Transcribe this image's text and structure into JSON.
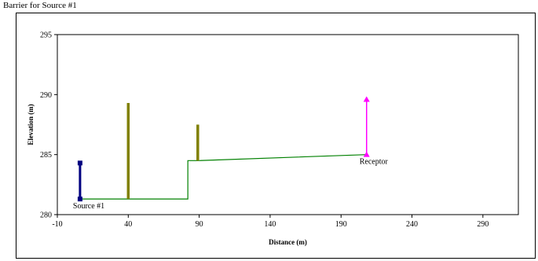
{
  "window": {
    "title": "Barrier for Source #1"
  },
  "chart_data": {
    "type": "line",
    "title": "",
    "xlabel": "Distance (m)",
    "ylabel": "Elevation (m)",
    "xlim": [
      -10,
      315
    ],
    "ylim": [
      280,
      295
    ],
    "xticks": [
      -10,
      40,
      90,
      140,
      190,
      240,
      290
    ],
    "yticks": [
      280,
      285,
      290,
      295
    ],
    "grid": false,
    "legend": "none",
    "series": [
      {
        "role": "terrain",
        "color": "#008000",
        "x": [
          6,
          82,
          82,
          89,
          208
        ],
        "y": [
          281.3,
          281.3,
          284.5,
          284.5,
          285.0
        ]
      },
      {
        "role": "source",
        "color": "#000080",
        "x": [
          6,
          6
        ],
        "y": [
          281.3,
          284.3
        ]
      },
      {
        "role": "barrier",
        "color": "#808000",
        "x": [
          40,
          40
        ],
        "y": [
          281.3,
          289.3
        ]
      },
      {
        "role": "barrier",
        "color": "#808000",
        "x": [
          89,
          89
        ],
        "y": [
          284.5,
          287.5
        ]
      },
      {
        "role": "receptor",
        "color": "#ff00ff",
        "x": [
          208,
          208
        ],
        "y": [
          285.0,
          289.6
        ]
      }
    ],
    "annotations": [
      {
        "text": "Source #1",
        "x": 6,
        "y": 281.3
      },
      {
        "text": "Receptor",
        "x": 208,
        "y": 285.0
      }
    ]
  }
}
